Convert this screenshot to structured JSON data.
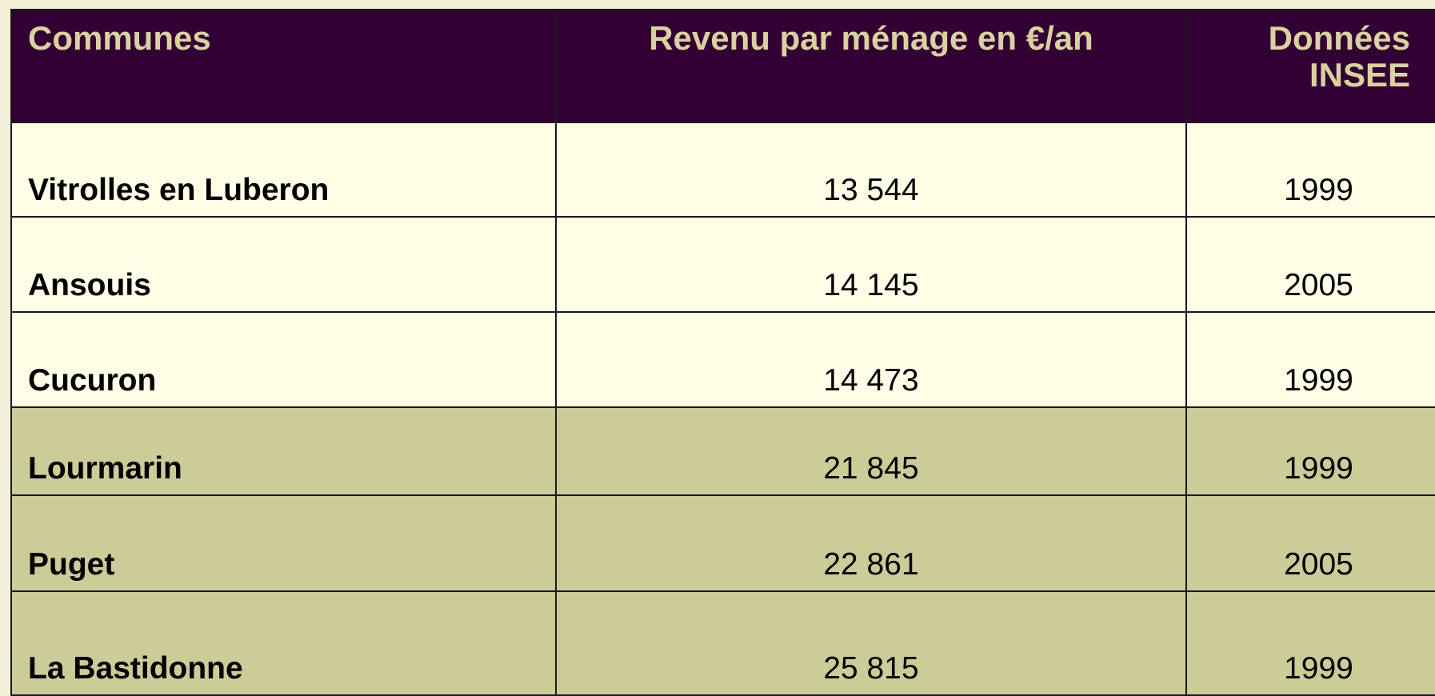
{
  "table": {
    "header": [
      "Communes",
      "Revenu par ménage en €/an",
      "Données INSEE"
    ],
    "rows": [
      [
        "Vitrolles en Luberon",
        "13 544",
        "1999"
      ],
      [
        "Ansouis",
        "14 145",
        "2005"
      ],
      [
        "Cucuron",
        "14 473",
        "1999"
      ],
      [
        "Lourmarin",
        "21 845",
        "1999"
      ],
      [
        "Puget",
        "22 861",
        "2005"
      ],
      [
        "La Bastidonne",
        "25 815",
        "1999"
      ]
    ]
  }
}
